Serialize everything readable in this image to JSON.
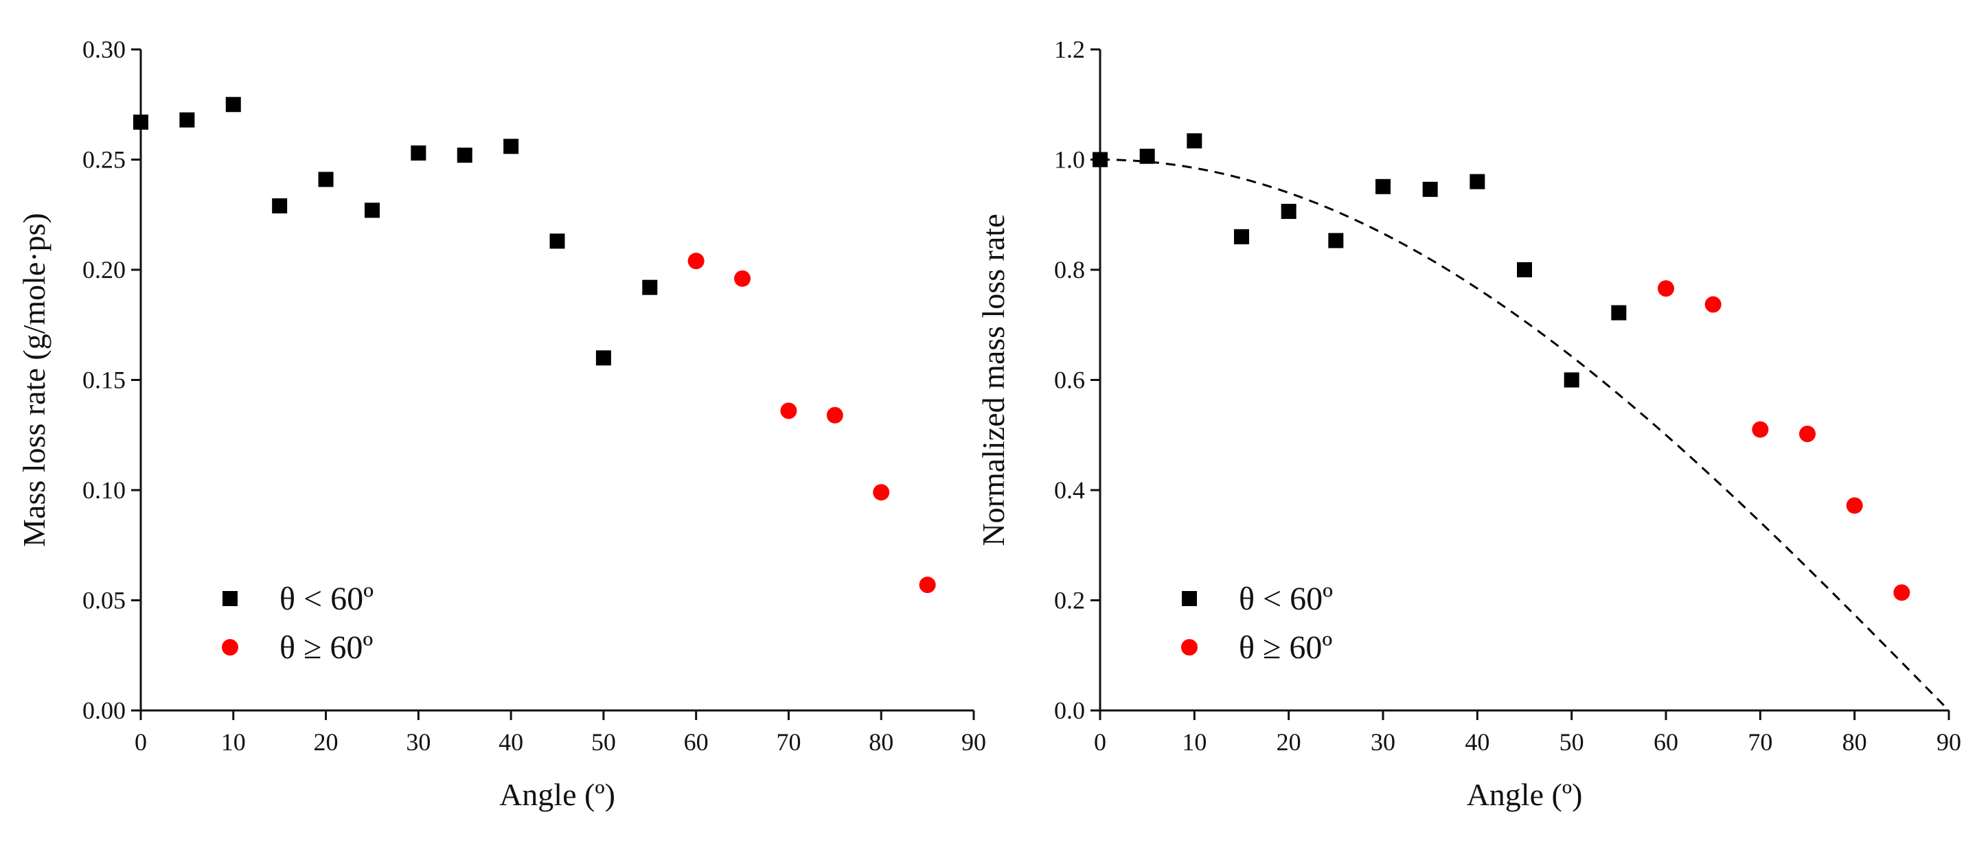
{
  "chart_data": [
    {
      "type": "scatter",
      "title": "",
      "xlabel": "Angle (º)",
      "ylabel": "Mass loss rate (g/mole·ps)",
      "xlim": [
        0,
        90
      ],
      "ylim": [
        0,
        0.3
      ],
      "xticks": [
        0,
        10,
        20,
        30,
        40,
        50,
        60,
        70,
        80,
        90
      ],
      "xtick_labels": [
        "0",
        "10",
        "20",
        "30",
        "40",
        "50",
        "60",
        "70",
        "80",
        "90"
      ],
      "yticks": [
        0,
        0.05,
        0.1,
        0.15,
        0.2,
        0.25,
        0.3
      ],
      "ytick_labels": [
        "0.00",
        "0.05",
        "0.10",
        "0.15",
        "0.20",
        "0.25",
        "0.30"
      ],
      "grid": false,
      "legend_position": "bottom-left",
      "series": [
        {
          "name": "θ < 60º",
          "marker": "square",
          "color": "#000000",
          "x": [
            0,
            5,
            10,
            15,
            20,
            25,
            30,
            35,
            40,
            45,
            50,
            55
          ],
          "y": [
            0.267,
            0.268,
            0.275,
            0.229,
            0.241,
            0.227,
            0.253,
            0.252,
            0.256,
            0.213,
            0.16,
            0.192
          ]
        },
        {
          "name": "θ ≥ 60º",
          "marker": "circle",
          "color": "#ff0000",
          "x": [
            60,
            65,
            70,
            75,
            80,
            85
          ],
          "y": [
            0.204,
            0.196,
            0.136,
            0.134,
            0.099,
            0.057
          ]
        }
      ]
    },
    {
      "type": "scatter",
      "title": "",
      "xlabel": "Angle (º)",
      "ylabel": "Normalized mass loss rate",
      "xlim": [
        0,
        90
      ],
      "ylim": [
        0,
        1.2
      ],
      "xticks": [
        0,
        10,
        20,
        30,
        40,
        50,
        60,
        70,
        80,
        90
      ],
      "xtick_labels": [
        "0",
        "10",
        "20",
        "30",
        "40",
        "50",
        "60",
        "70",
        "80",
        "90"
      ],
      "yticks": [
        0,
        0.2,
        0.4,
        0.6,
        0.8,
        1.0,
        1.2
      ],
      "ytick_labels": [
        "0.0",
        "0.2",
        "0.4",
        "0.6",
        "0.8",
        "1.0",
        "1.2"
      ],
      "grid": false,
      "legend_position": "bottom-left",
      "series": [
        {
          "name": "θ < 60º",
          "marker": "square",
          "color": "#000000",
          "x": [
            0,
            5,
            10,
            15,
            20,
            25,
            30,
            35,
            40,
            45,
            50,
            55
          ],
          "y": [
            1.0,
            1.006,
            1.034,
            0.86,
            0.906,
            0.853,
            0.951,
            0.946,
            0.96,
            0.8,
            0.6,
            0.722
          ]
        },
        {
          "name": "θ ≥ 60º",
          "marker": "circle",
          "color": "#ff0000",
          "x": [
            60,
            65,
            70,
            75,
            80,
            85
          ],
          "y": [
            0.766,
            0.737,
            0.51,
            0.502,
            0.372,
            0.214
          ]
        }
      ],
      "reference_curve": {
        "name": "cos(θ)",
        "style": "dashed",
        "color": "#000000",
        "function": "cos",
        "x_range": [
          0,
          90
        ]
      }
    }
  ]
}
